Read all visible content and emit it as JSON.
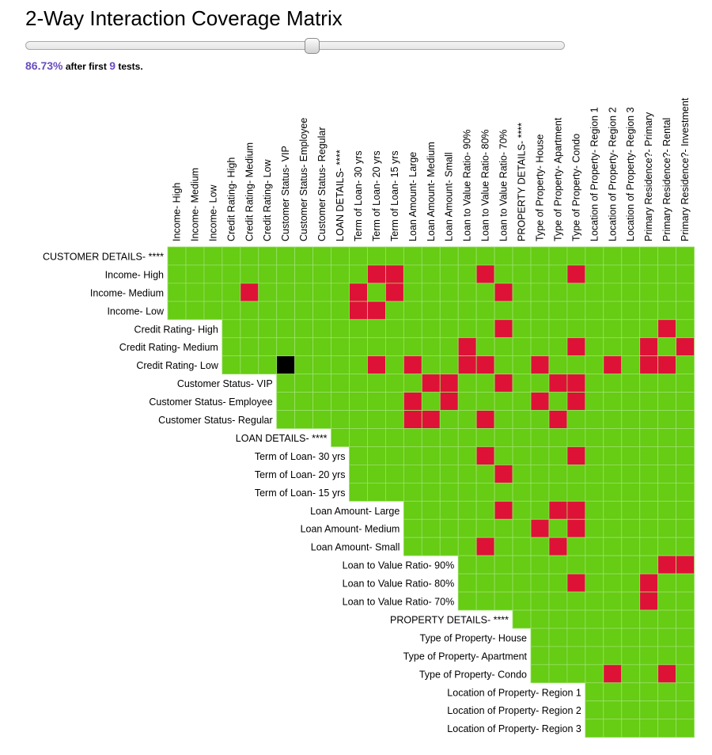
{
  "title": "2-Way Interaction Coverage Matrix",
  "slider": {
    "value_tests": 9
  },
  "summary": {
    "percent": "86.73%",
    "after_text": "after first",
    "tests_count": "9",
    "tests_text": "tests."
  },
  "colors": {
    "covered": "#66cc14",
    "uncovered": "#dd1236",
    "invalid": "#000000",
    "accent": "#6a4cbf"
  },
  "chart_data": {
    "type": "heatmap",
    "title": "2-Way Interaction Coverage Matrix",
    "row_labels": [
      "CUSTOMER DETAILS- ****",
      "Income- High",
      "Income- Medium",
      "Income- Low",
      "Credit Rating- High",
      "Credit Rating- Medium",
      "Credit Rating- Low",
      "Customer Status- VIP",
      "Customer Status- Employee",
      "Customer Status- Regular",
      "LOAN DETAILS- ****",
      "Term of Loan- 30 yrs",
      "Term of Loan- 20 yrs",
      "Term of Loan- 15 yrs",
      "Loan Amount- Large",
      "Loan Amount- Medium",
      "Loan Amount- Small",
      "Loan to Value Ratio- 90%",
      "Loan to Value Ratio- 80%",
      "Loan to Value Ratio- 70%",
      "PROPERTY DETAILS- ****",
      "Type of Property- House",
      "Type of Property- Apartment",
      "Type of Property- Condo",
      "Location of Property- Region 1",
      "Location of Property- Region 2",
      "Location of Property- Region 3"
    ],
    "column_labels": [
      "Income- High",
      "Income- Medium",
      "Income- Low",
      "Credit Rating- High",
      "Credit Rating- Medium",
      "Credit Rating- Low",
      "Customer Status- VIP",
      "Customer Status- Employee",
      "Customer Status- Regular",
      "LOAN DETAILS- ****",
      "Term of Loan- 30 yrs",
      "Term of Loan- 20 yrs",
      "Term of Loan- 15 yrs",
      "Loan Amount- Large",
      "Loan Amount- Medium",
      "Loan Amount- Small",
      "Loan to Value Ratio- 90%",
      "Loan to Value Ratio- 80%",
      "Loan to Value Ratio- 70%",
      "PROPERTY DETAILS- ****",
      "Type of Property- House",
      "Type of Property- Apartment",
      "Type of Property- Condo",
      "Location of Property- Region 1",
      "Location of Property- Region 2",
      "Location of Property- Region 3",
      "Primary Residence?- Primary",
      "Primary Residence?- Rental",
      "Primary Residence?- Investment"
    ],
    "row_first_column": [
      0,
      0,
      0,
      0,
      3,
      3,
      3,
      6,
      6,
      6,
      9,
      10,
      10,
      10,
      13,
      13,
      13,
      16,
      16,
      16,
      19,
      20,
      20,
      20,
      23,
      23,
      23
    ],
    "cell_values": {
      "covered": 1,
      "uncovered": 0,
      "invalid": -1
    },
    "uncovered_cells": [
      [
        1,
        11
      ],
      [
        1,
        12
      ],
      [
        1,
        17
      ],
      [
        1,
        22
      ],
      [
        2,
        4
      ],
      [
        2,
        10
      ],
      [
        2,
        12
      ],
      [
        2,
        18
      ],
      [
        3,
        10
      ],
      [
        3,
        11
      ],
      [
        4,
        18
      ],
      [
        4,
        27
      ],
      [
        5,
        16
      ],
      [
        5,
        22
      ],
      [
        5,
        26
      ],
      [
        5,
        28
      ],
      [
        6,
        11
      ],
      [
        6,
        13
      ],
      [
        6,
        16
      ],
      [
        6,
        17
      ],
      [
        6,
        20
      ],
      [
        6,
        24
      ],
      [
        6,
        26
      ],
      [
        6,
        27
      ],
      [
        7,
        14
      ],
      [
        7,
        15
      ],
      [
        7,
        18
      ],
      [
        7,
        21
      ],
      [
        7,
        22
      ],
      [
        8,
        13
      ],
      [
        8,
        15
      ],
      [
        8,
        20
      ],
      [
        8,
        22
      ],
      [
        9,
        13
      ],
      [
        9,
        14
      ],
      [
        9,
        17
      ],
      [
        9,
        21
      ],
      [
        11,
        17
      ],
      [
        11,
        22
      ],
      [
        12,
        18
      ],
      [
        14,
        18
      ],
      [
        14,
        21
      ],
      [
        14,
        22
      ],
      [
        15,
        20
      ],
      [
        15,
        22
      ],
      [
        16,
        17
      ],
      [
        16,
        21
      ],
      [
        17,
        27
      ],
      [
        17,
        28
      ],
      [
        18,
        22
      ],
      [
        18,
        26
      ],
      [
        19,
        26
      ],
      [
        23,
        24
      ],
      [
        23,
        27
      ]
    ],
    "invalid_cells": [
      [
        6,
        6
      ]
    ],
    "grid": true
  }
}
